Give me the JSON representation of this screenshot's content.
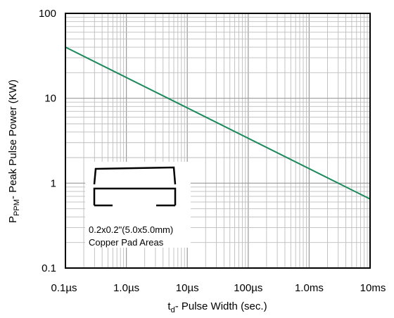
{
  "chart_data": {
    "type": "line",
    "xscale": "log",
    "yscale": "log",
    "xlim": [
      "0.1µs",
      "10ms"
    ],
    "ylim": [
      0.1,
      100
    ],
    "xlabel": {
      "main": "t",
      "sub": "d",
      "rest": "- Pulse Width (sec.)"
    },
    "ylabel": {
      "main": "P",
      "sub": "PPM",
      "rest": "- Peak Pulse Power (KW)"
    },
    "x_ticks": [
      "0.1µs",
      "1.0µs",
      "10µs",
      "100µs",
      "1.0ms",
      "10ms"
    ],
    "y_ticks": [
      "100",
      "10",
      "1",
      "0.1"
    ],
    "grid": true,
    "series": [
      {
        "color": "#1a8a5a",
        "x": [
          "0.1µs",
          "10ms"
        ],
        "y": [
          40,
          0.65
        ]
      }
    ],
    "annotations": [
      "0.2x0.2\"(5.0x5.0mm)",
      "Copper Pad Areas"
    ]
  }
}
